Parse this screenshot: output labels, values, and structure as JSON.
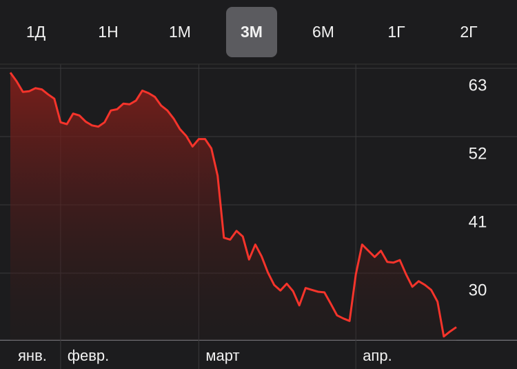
{
  "tabs": [
    "1Д",
    "1Н",
    "1М",
    "3М",
    "6М",
    "1Г",
    "2Г"
  ],
  "selected_tab": 3,
  "chart_data": {
    "type": "line",
    "color": "#f5342b",
    "grid": true,
    "x": [
      0,
      1,
      2,
      3,
      4,
      5,
      6,
      7,
      8,
      9,
      10,
      11,
      12,
      13,
      14,
      15,
      16,
      17,
      18,
      19,
      20,
      21,
      22,
      23,
      24,
      25,
      26,
      27,
      28,
      29,
      30,
      31,
      32,
      33,
      34,
      35,
      36,
      37,
      38,
      39,
      40,
      41,
      42,
      43,
      44,
      45,
      46,
      47,
      48,
      49,
      50,
      51,
      52,
      53,
      54,
      55,
      56,
      57,
      58,
      59,
      60,
      61,
      62,
      63,
      64,
      65,
      66,
      67,
      68,
      69,
      70,
      71
    ],
    "values": [
      62.3,
      60.9,
      59.2,
      59.3,
      59.8,
      59.6,
      58.8,
      58.1,
      54.3,
      54.0,
      55.7,
      55.4,
      54.4,
      53.8,
      53.6,
      54.3,
      56.2,
      56.4,
      57.3,
      57.2,
      57.8,
      59.4,
      59.0,
      58.4,
      57.0,
      56.2,
      54.9,
      53.2,
      52.1,
      50.4,
      51.6,
      51.6,
      50.1,
      45.7,
      35.7,
      35.4,
      36.8,
      35.9,
      32.2,
      34.6,
      32.7,
      30.1,
      28.1,
      27.2,
      28.3,
      27.1,
      24.8,
      27.6,
      27.3,
      27.0,
      26.9,
      25.1,
      23.2,
      22.7,
      22.3,
      29.8,
      34.6,
      33.6,
      32.6,
      33.6,
      31.8,
      31.7,
      32.1,
      29.8,
      27.8,
      28.7,
      28.1,
      27.3,
      25.4,
      19.8,
      20.6,
      21.3
    ],
    "xlim": [
      0,
      71
    ],
    "xticks": [
      {
        "value": 0,
        "label": "янв."
      },
      {
        "value": 8,
        "label": "февр."
      },
      {
        "value": 30,
        "label": "март"
      },
      {
        "value": 55,
        "label": "апр."
      }
    ],
    "ylim": [
      19.2,
      63.6
    ],
    "yticks": [
      63,
      52,
      41,
      30
    ]
  }
}
